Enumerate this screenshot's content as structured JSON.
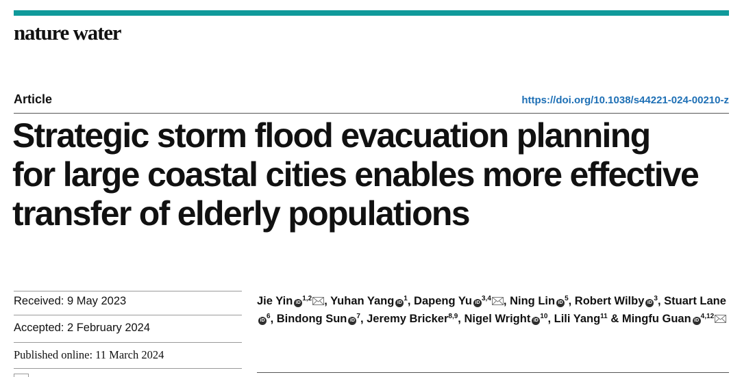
{
  "header": {
    "journal": "nature water",
    "section": "Article",
    "doi": "https://doi.org/10.1038/s44221-024-00210-z"
  },
  "title_lines": [
    "Strategic storm flood evacuation planning",
    "for large coastal cities enables more effective",
    "transfer of elderly populations"
  ],
  "dates": {
    "received": "Received: 9 May 2023",
    "accepted": "Accepted: 2 February 2024",
    "published": "Published online: 11 March 2024"
  },
  "authors": [
    {
      "name": "Jie Yin",
      "sup": "1,2",
      "orcid": true,
      "email": true,
      "sep": ", "
    },
    {
      "name": "Yuhan Yang",
      "sup": "1",
      "orcid": true,
      "email": false,
      "sep": ", "
    },
    {
      "name": "Dapeng Yu",
      "sup": "3,4",
      "orcid": true,
      "email": true,
      "sep": ", "
    },
    {
      "name": "Ning Lin",
      "sup": "5",
      "orcid": true,
      "email": false,
      "sep": ", "
    },
    {
      "name": "Robert Wilby",
      "sup": "3",
      "orcid": true,
      "email": false,
      "sep": ", "
    },
    {
      "name": "Stuart Lane",
      "sup": "6",
      "orcid": true,
      "email": false,
      "sep": ", "
    },
    {
      "name": "Bindong Sun",
      "sup": "7",
      "orcid": true,
      "email": false,
      "sep": ", "
    },
    {
      "name": "Jeremy Bricker",
      "sup": "8,9",
      "orcid": false,
      "email": false,
      "sep": ", "
    },
    {
      "name": "Nigel Wright",
      "sup": "10",
      "orcid": true,
      "email": false,
      "sep": ", "
    },
    {
      "name": "Lili Yang",
      "sup": "11",
      "orcid": false,
      "email": false,
      "sep": " & "
    },
    {
      "name": "Mingfu Guan",
      "sup": "4,12",
      "orcid": true,
      "email": true,
      "sep": ""
    }
  ],
  "icons": {
    "orcid": "orcid-icon",
    "email": "envelope-icon"
  },
  "colors": {
    "accent_bar": "#0f9a9b",
    "doi_link": "#1d6fb5"
  }
}
